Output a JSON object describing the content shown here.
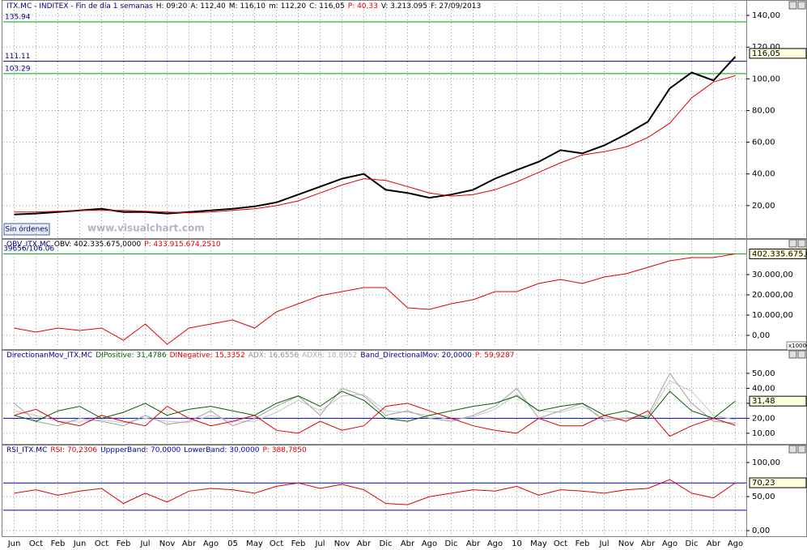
{
  "chart_data": [
    {
      "type": "line",
      "title": [
        {
          "text": "ITX.MC - INDITEX - Fin de día 1 semanas",
          "color": "#000080"
        },
        {
          "text": "H: 09:20",
          "color": "#000000"
        },
        {
          "text": "A: 112,40",
          "color": "#000000"
        },
        {
          "text": "M: 116,10",
          "color": "#000000"
        },
        {
          "text": "m: 112,20",
          "color": "#000000"
        },
        {
          "text": "C: 116,05",
          "color": "#000000"
        },
        {
          "text": "P: 40,33",
          "color": "#e00000"
        },
        {
          "text": "V: 3.213.095",
          "color": "#000000"
        },
        {
          "text": "F: 27/09/2013",
          "color": "#000000"
        }
      ],
      "series": [
        {
          "name": "ITX.MC",
          "color": "#000000",
          "values": [
            14.4,
            15,
            16,
            17,
            18,
            16,
            16,
            15,
            16,
            17,
            18,
            19.5,
            22,
            27,
            32,
            37,
            40,
            30,
            28,
            25,
            27,
            30,
            37,
            42.5,
            47.7,
            55,
            53,
            58,
            65,
            73,
            94,
            104,
            99,
            114
          ]
        },
        {
          "name": "MA",
          "color": "#e00000",
          "values": [
            16,
            16,
            16.5,
            17,
            17,
            17,
            16.5,
            16,
            15.5,
            16,
            17,
            18,
            20,
            23,
            28,
            33,
            37,
            36,
            32,
            28,
            26,
            27,
            30,
            35,
            41,
            47,
            52,
            54,
            57,
            63,
            72,
            88,
            98,
            102
          ]
        }
      ],
      "levels": [
        135.94,
        111.11,
        103.29
      ],
      "level_colors": [
        "#00a000",
        "#000080",
        "#00a000"
      ],
      "last_labels": [
        {
          "value": 116.05,
          "label": "116,05"
        }
      ],
      "ylim": [
        0,
        143.6
      ],
      "yticks": [
        {
          "value": 20,
          "label": "20,00"
        },
        {
          "value": 40,
          "label": "40,00"
        },
        {
          "value": 60,
          "label": "60,00"
        },
        {
          "value": 80,
          "label": "80,00"
        },
        {
          "value": 100,
          "label": "100,00"
        },
        {
          "value": 120,
          "label": "120,00"
        },
        {
          "value": 140,
          "label": "140,00"
        }
      ],
      "grid": true
    },
    {
      "type": "line",
      "title": [
        {
          "text": "OBV_ITX.MC",
          "color": "#000080"
        },
        {
          "text": "OBV: 402.335.675,0000",
          "color": "#000000"
        },
        {
          "text": "P: 433.915.674,2510",
          "color": "#e00000"
        }
      ],
      "annotation": "39656/106.06",
      "scale_label": "x10000",
      "series": [
        {
          "name": "OBV",
          "color": "#e00000",
          "values": [
            3600,
            1600,
            3600,
            2400,
            3600,
            -2400,
            5600,
            -4400,
            3600,
            5600,
            7600,
            3600,
            11600,
            15600,
            19600,
            21600,
            23600,
            23600,
            13600,
            12800,
            15600,
            17600,
            21600,
            21600,
            25600,
            27600,
            25600,
            28800,
            30400,
            33600,
            36800,
            38400,
            38400,
            40233.5675
          ]
        }
      ],
      "levels": [
        40233.5675
      ],
      "level_colors": [
        "#00a000"
      ],
      "last_labels": [
        {
          "value": 40233.5675,
          "label": "402.335.675,00"
        }
      ],
      "ylim": [
        -5600,
        43600
      ],
      "yticks": [
        {
          "value": 0,
          "label": "0,00"
        },
        {
          "value": 10000,
          "label": "10.000,00"
        },
        {
          "value": 20000,
          "label": "20.000,00"
        },
        {
          "value": 30000,
          "label": "30.000,00"
        }
      ],
      "grid": true
    },
    {
      "type": "line",
      "title": [
        {
          "text": "DirectionanMov_ITX.MC",
          "color": "#000080"
        },
        {
          "text": "DIPositive: 31,4786",
          "color": "#006000"
        },
        {
          "text": "DINegative: 15,3352",
          "color": "#e00000"
        },
        {
          "text": "ADX: 16,6556",
          "color": "#909090"
        },
        {
          "text": "ADXR: 18,8952",
          "color": "#b0b0b0"
        },
        {
          "text": "Band_DirectionalMov: 20,0000",
          "color": "#000080"
        },
        {
          "text": "P: 59,9287",
          "color": "#e00000"
        }
      ],
      "series": [
        {
          "name": "ADXR",
          "color": "#c8c8c8",
          "values": [
            25,
            22,
            18,
            18,
            19,
            17,
            20,
            18,
            17,
            22,
            18,
            18,
            24,
            32,
            25,
            35,
            36,
            25,
            24,
            22,
            19,
            21,
            26,
            36,
            25,
            24,
            28,
            20,
            20,
            21,
            45,
            38,
            22,
            18.9
          ]
        },
        {
          "name": "ADX",
          "color": "#a0a0a0",
          "values": [
            30,
            18,
            15,
            20,
            18,
            15,
            22,
            16,
            18,
            25,
            15,
            20,
            28,
            35,
            22,
            40,
            35,
            22,
            25,
            20,
            18,
            22,
            28,
            40,
            20,
            25,
            30,
            18,
            20,
            22,
            50,
            30,
            18,
            16.7
          ]
        },
        {
          "name": "DIPositive",
          "color": "#006000",
          "values": [
            22,
            18,
            25,
            28,
            20,
            24,
            30,
            22,
            26,
            28,
            25,
            22,
            30,
            35,
            28,
            38,
            32,
            20,
            18,
            22,
            25,
            28,
            30,
            35,
            25,
            28,
            30,
            22,
            25,
            20,
            38,
            25,
            20,
            31.5
          ]
        },
        {
          "name": "DINegative",
          "color": "#e00000",
          "values": [
            22,
            26,
            18,
            15,
            22,
            18,
            15,
            28,
            20,
            15,
            18,
            22,
            12,
            10,
            18,
            12,
            15,
            28,
            30,
            25,
            20,
            15,
            12,
            10,
            20,
            15,
            15,
            22,
            18,
            25,
            8,
            15,
            20,
            15.3
          ]
        }
      ],
      "levels": [
        20
      ],
      "level_colors": [
        "#0000c0"
      ],
      "last_labels": [
        {
          "value": 31.48,
          "label": "31,48"
        }
      ],
      "ylim": [
        4,
        58.6
      ],
      "yticks": [
        {
          "value": 10,
          "label": "10,00"
        },
        {
          "value": 20,
          "label": "20,00"
        },
        {
          "value": 30,
          "label": "30,00"
        },
        {
          "value": 40,
          "label": "40,00"
        },
        {
          "value": 50,
          "label": "50,00"
        }
      ],
      "grid": true
    },
    {
      "type": "line",
      "title": [
        {
          "text": "RSI_ITX.MC",
          "color": "#000080"
        },
        {
          "text": "RSI: 70,2306",
          "color": "#e00000"
        },
        {
          "text": "UppperBand: 70,0000",
          "color": "#0000c0"
        },
        {
          "text": "LowerBand: 30,0000",
          "color": "#0000c0"
        },
        {
          "text": "P: 388,7850",
          "color": "#e00000"
        }
      ],
      "categories": [
        "Jun",
        "Oct",
        "Feb",
        "Jun",
        "Oct",
        "Feb",
        "Jul",
        "Nov",
        "Abr",
        "Ago",
        "05",
        "May",
        "Oct",
        "Feb",
        "Jul",
        "Nov",
        "Abr",
        "Dic",
        "Abr",
        "Ago",
        "Dic",
        "Abr",
        "Ago",
        "10",
        "May",
        "Oct",
        "Feb",
        "Jul",
        "Nov",
        "Abr",
        "Ago",
        "Dic",
        "Abr",
        "Ago"
      ],
      "series": [
        {
          "name": "RSI",
          "color": "#e00000",
          "values": [
            55,
            60,
            52,
            58,
            62,
            40,
            55,
            42,
            58,
            62,
            60,
            55,
            65,
            70,
            62,
            68,
            60,
            40,
            38,
            50,
            55,
            60,
            58,
            65,
            52,
            60,
            58,
            55,
            60,
            62,
            75,
            55,
            48,
            70.2
          ]
        }
      ],
      "levels": [
        70,
        30
      ],
      "level_colors": [
        "#0000c0",
        "#0000c0"
      ],
      "last_labels": [
        {
          "value": 70.23,
          "label": "70,23"
        }
      ],
      "ylim": [
        -7,
        110.7
      ],
      "yticks": [
        {
          "value": 0,
          "label": "0,00"
        },
        {
          "value": 50,
          "label": "50,00"
        },
        {
          "value": 100,
          "label": "100,00"
        }
      ],
      "grid": true
    }
  ],
  "ui": {
    "watermark": "www.visualchart.com",
    "button": "Sin órdenes"
  }
}
